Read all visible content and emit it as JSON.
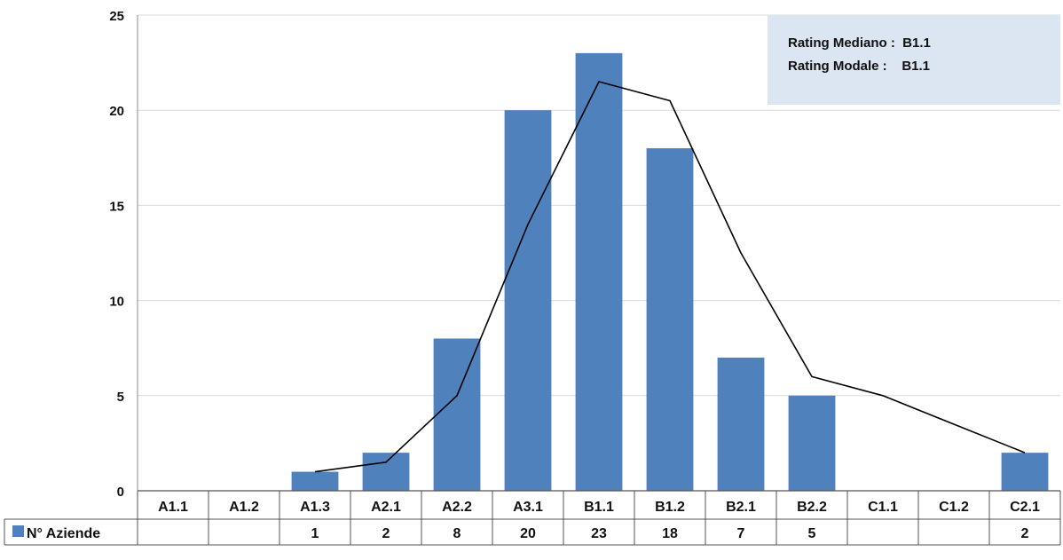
{
  "chart_data": {
    "type": "bar",
    "categories": [
      "A1.1",
      "A1.2",
      "A1.3",
      "A2.1",
      "A2.2",
      "A3.1",
      "B1.1",
      "B1.2",
      "B2.1",
      "B2.2",
      "C1.1",
      "C1.2",
      "C2.1"
    ],
    "series": [
      {
        "name": "N° Aziende",
        "values": [
          null,
          null,
          1,
          2,
          8,
          20,
          23,
          18,
          7,
          5,
          null,
          null,
          2
        ],
        "color": "#4f81bd"
      }
    ],
    "trend_line": {
      "type": "line",
      "values": [
        null,
        null,
        1,
        1.5,
        5,
        14,
        21.5,
        20.5,
        12.5,
        6,
        5,
        3.5,
        2
      ],
      "color": "#000000"
    },
    "yticks": [
      0,
      5,
      10,
      15,
      20,
      25
    ],
    "ylim": [
      0,
      25
    ],
    "grid": true,
    "legend": "data-table-left",
    "data_table": true,
    "info_box": {
      "line1": "Rating Mediano :  B1.1",
      "line2": "Rating Modale :    B1.1",
      "background": "#dce6f2"
    },
    "title": "",
    "xlabel": "",
    "ylabel": ""
  }
}
